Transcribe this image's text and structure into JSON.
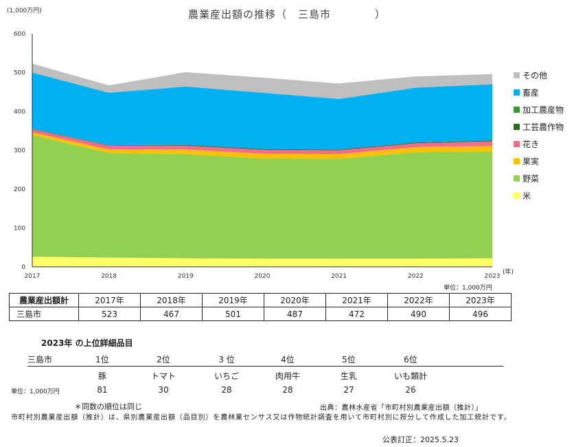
{
  "title": "農業産出額の推移（　三島市　　　　）",
  "y_unit": "(1,000万円)",
  "x_unit": "(年)",
  "unit_note": "単位：1,000万円",
  "chart_data": {
    "type": "area",
    "stacked": true,
    "title": "農業産出額の推移（　三島市　　　　）",
    "x": [
      "2017",
      "2018",
      "2019",
      "2020",
      "2021",
      "2022",
      "2023"
    ],
    "ylim": [
      0,
      600
    ],
    "yticks": [
      0,
      100,
      200,
      300,
      400,
      500,
      600
    ],
    "legend_position": "right",
    "series": [
      {
        "name": "米",
        "color": "#ffff66",
        "values": [
          26,
          24,
          22,
          21,
          21,
          21,
          22
        ]
      },
      {
        "name": "野菜",
        "color": "#92d050",
        "values": [
          313,
          269,
          268,
          258,
          257,
          274,
          275
        ]
      },
      {
        "name": "果実",
        "color": "#ffc000",
        "values": [
          7,
          9,
          12,
          12,
          12,
          13,
          14
        ]
      },
      {
        "name": "花き",
        "color": "#f06e8c",
        "values": [
          8,
          10,
          10,
          10,
          10,
          10,
          12
        ]
      },
      {
        "name": "工芸農作物",
        "color": "#2e6b1f",
        "values": [
          1,
          1,
          2,
          2,
          2,
          2,
          2
        ]
      },
      {
        "name": "加工農産物",
        "color": "#3a9a3a",
        "values": [
          0,
          0,
          0,
          0,
          0,
          0,
          0
        ]
      },
      {
        "name": "畜産",
        "color": "#00b0f0",
        "values": [
          145,
          135,
          150,
          145,
          130,
          141,
          145
        ]
      },
      {
        "name": "その他",
        "color": "#bfbfbf",
        "values": [
          23,
          19,
          37,
          39,
          40,
          29,
          26
        ]
      }
    ]
  },
  "legend_order": [
    "その他",
    "畜産",
    "加工農産物",
    "工芸農作物",
    "花き",
    "果実",
    "野菜",
    "米"
  ],
  "totals_table": {
    "header": "農業産出額計",
    "years": [
      "2017年",
      "2018年",
      "2019年",
      "2020年",
      "2021年",
      "2022年",
      "2023年"
    ],
    "row_name": "三島市",
    "values": [
      "523",
      "467",
      "501",
      "487",
      "472",
      "490",
      "496"
    ]
  },
  "ranking": {
    "title": "2023年 の上位詳細品目",
    "city": "三島市",
    "ranks": [
      "1位",
      "2位",
      "3 位",
      "4位",
      "5位",
      "6位"
    ],
    "items": [
      "豚",
      "トマト",
      "いちご",
      "肉用牛",
      "生乳",
      "いも類計"
    ],
    "values": [
      "81",
      "30",
      "28",
      "28",
      "27",
      "26"
    ],
    "unit": "単位：1,000万円"
  },
  "same_rank_note": "＊同数の順位は同じ",
  "source": "出典：農林水産省「市町村別農業産出額（推計）」",
  "description": "市町村別農業産出額（推計）は、県別農業産出額（品目別）を農林業センサス又は作物統計調査を用いて市町村別に按分して作成した加工統計です。",
  "revised": "公表訂正：2025.5.23"
}
